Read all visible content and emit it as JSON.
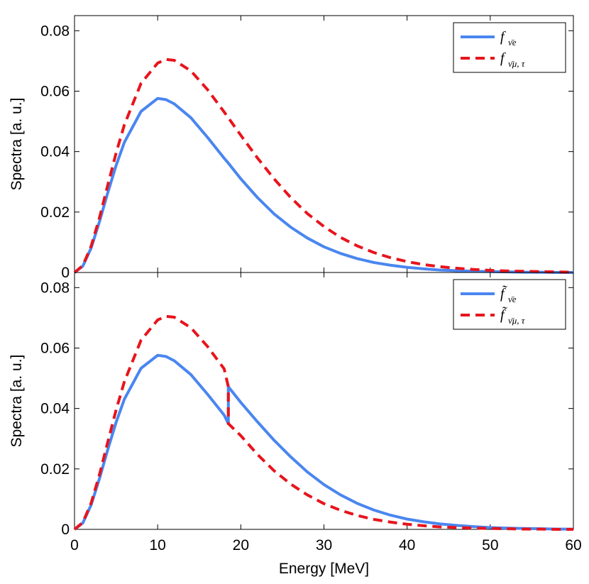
{
  "chart_data": [
    {
      "type": "line",
      "xlabel": "",
      "ylabel": "Spectra [a. u.]",
      "xlim": [
        0,
        60
      ],
      "ylim": [
        0,
        0.085
      ],
      "x_ticks": [
        0,
        10,
        20,
        30,
        40,
        50,
        60
      ],
      "x_tick_labels": [],
      "y_ticks": [
        0,
        0.02,
        0.04,
        0.06,
        0.08
      ],
      "y_tick_labels": [
        "0",
        "0.02",
        "0.04",
        "0.06",
        "0.08"
      ],
      "grid": false,
      "legend_position": "top-right",
      "x": [
        0,
        1,
        2,
        3,
        4,
        5,
        6,
        8,
        10,
        11,
        12,
        14,
        16,
        18,
        18.5,
        20,
        22,
        24,
        26,
        28,
        30,
        32,
        34,
        36,
        38,
        40,
        42,
        44,
        46,
        48,
        50,
        52,
        54,
        56,
        58,
        60
      ],
      "series": [
        {
          "name": "f",
          "legend_sub": "ν̄e",
          "color": "#4a86f0",
          "dash": "solid",
          "values": [
            0,
            0.0021,
            0.0081,
            0.0168,
            0.0264,
            0.0354,
            0.0431,
            0.0533,
            0.0576,
            0.0572,
            0.0558,
            0.0512,
            0.0447,
            0.0378,
            0.0362,
            0.031,
            0.0248,
            0.0194,
            0.015,
            0.0114,
            0.0085,
            0.0063,
            0.0046,
            0.0033,
            0.0024,
            0.0017,
            0.0012,
            0.0008,
            0.0006,
            0.0004,
            0.0003,
            0.0002,
            0.0001,
            0.0001,
            0.0,
            0.0
          ]
        },
        {
          "name": "f",
          "legend_sub": "ν̄μ, τ",
          "color": "#e8141c",
          "dash": "dashed",
          "values": [
            0,
            0.0023,
            0.0087,
            0.0181,
            0.0289,
            0.0395,
            0.0489,
            0.0626,
            0.0693,
            0.0705,
            0.0702,
            0.0667,
            0.0605,
            0.0531,
            0.0512,
            0.0454,
            0.0379,
            0.031,
            0.0248,
            0.0195,
            0.0152,
            0.0116,
            0.0088,
            0.0066,
            0.0049,
            0.0036,
            0.0026,
            0.0019,
            0.0014,
            0.001,
            0.0007,
            0.0005,
            0.0004,
            0.0003,
            0.0002,
            0.0001
          ]
        }
      ]
    },
    {
      "type": "line",
      "xlabel": "Energy [MeV]",
      "ylabel": "Spectra [a. u.]",
      "xlim": [
        0,
        60
      ],
      "ylim": [
        0,
        0.085
      ],
      "x_ticks": [
        0,
        10,
        20,
        30,
        40,
        50,
        60
      ],
      "x_tick_labels": [
        "0",
        "10",
        "20",
        "30",
        "40",
        "50",
        "60"
      ],
      "y_ticks": [
        0,
        0.02,
        0.04,
        0.06,
        0.08
      ],
      "y_tick_labels": [
        "0",
        "0.02",
        "0.04",
        "0.06",
        "0.08"
      ],
      "grid": false,
      "legend_position": "top-right",
      "series": [
        {
          "name": "f̃",
          "legend_sub": "ν̄e",
          "color": "#4a86f0",
          "dash": "solid",
          "x": [
            0,
            1,
            2,
            3,
            4,
            5,
            6,
            8,
            10,
            11,
            12,
            14,
            16,
            18,
            18.5,
            18.5,
            20,
            22,
            24,
            26,
            28,
            30,
            32,
            34,
            36,
            38,
            40,
            42,
            44,
            46,
            48,
            50,
            52,
            54,
            56,
            58,
            60
          ],
          "values": [
            0,
            0.0021,
            0.0081,
            0.0168,
            0.0264,
            0.0354,
            0.0431,
            0.0533,
            0.0576,
            0.0572,
            0.0558,
            0.0512,
            0.0447,
            0.0378,
            0.035,
            0.0472,
            0.042,
            0.0356,
            0.0295,
            0.024,
            0.019,
            0.0148,
            0.0114,
            0.0086,
            0.0064,
            0.0047,
            0.0034,
            0.0025,
            0.0018,
            0.0013,
            0.0009,
            0.0006,
            0.0004,
            0.0003,
            0.0002,
            0.0001,
            0.0001
          ]
        },
        {
          "name": "f̃",
          "legend_sub": "ν̄μ, τ",
          "color": "#e8141c",
          "dash": "dashed",
          "x": [
            0,
            1,
            2,
            3,
            4,
            5,
            6,
            8,
            10,
            11,
            12,
            14,
            16,
            18,
            18.5,
            18.5,
            20,
            22,
            24,
            26,
            28,
            30,
            32,
            34,
            36,
            38,
            40,
            42,
            44,
            46,
            48,
            50,
            52,
            54,
            56,
            58,
            60
          ],
          "values": [
            0,
            0.0023,
            0.0087,
            0.0181,
            0.0289,
            0.0395,
            0.0489,
            0.0626,
            0.0693,
            0.0705,
            0.0702,
            0.0667,
            0.0605,
            0.0531,
            0.0472,
            0.035,
            0.031,
            0.0248,
            0.0194,
            0.015,
            0.0114,
            0.0085,
            0.0063,
            0.0046,
            0.0033,
            0.0024,
            0.0017,
            0.0012,
            0.0008,
            0.0006,
            0.0004,
            0.0003,
            0.0002,
            0.0001,
            0.0001,
            0.0,
            0.0
          ]
        }
      ]
    }
  ]
}
